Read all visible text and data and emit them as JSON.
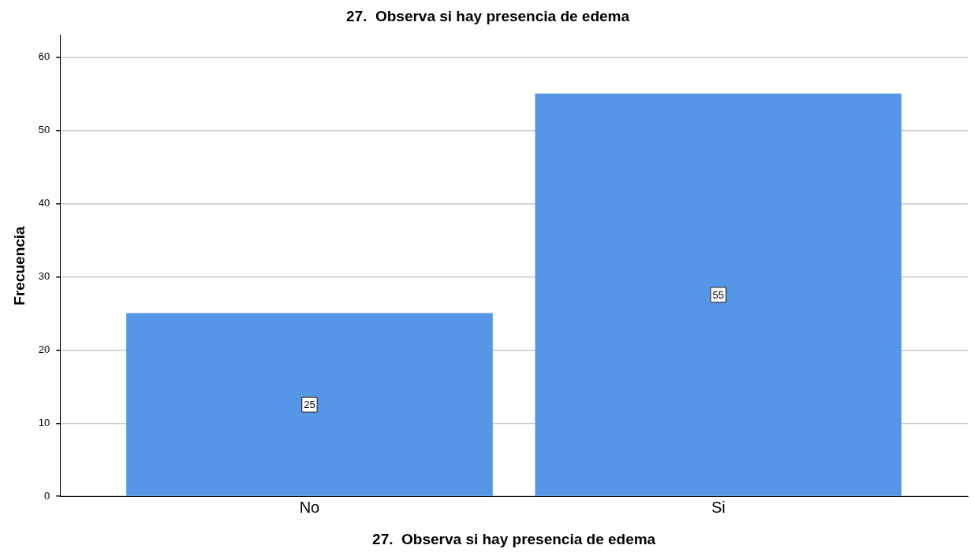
{
  "chart_data": {
    "type": "bar",
    "title": "27.  Observa si hay presencia de edema",
    "xlabel": "27.  Observa si hay presencia de edema",
    "ylabel": "Frecuencia",
    "categories": [
      "No",
      "Si"
    ],
    "values": [
      25,
      55
    ],
    "color": "#5596e6",
    "ylim": [
      0,
      63
    ],
    "yticks": [
      0,
      10,
      20,
      30,
      40,
      50,
      60
    ],
    "grid": "y",
    "data_labels": true,
    "legend": false
  }
}
